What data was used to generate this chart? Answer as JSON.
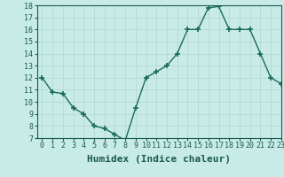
{
  "x": [
    0,
    1,
    2,
    3,
    4,
    5,
    6,
    7,
    8,
    9,
    10,
    11,
    12,
    13,
    14,
    15,
    16,
    17,
    18,
    19,
    20,
    21,
    22,
    23
  ],
  "y": [
    12,
    10.8,
    10.7,
    9.5,
    9.0,
    8.0,
    7.8,
    7.3,
    6.8,
    9.5,
    12.0,
    12.5,
    13.0,
    14.0,
    16.0,
    16.0,
    17.8,
    17.9,
    16.0,
    16.0,
    16.0,
    14.0,
    12.0,
    11.5
  ],
  "line_color": "#1a6b5a",
  "marker": "+",
  "bg_color": "#c8ebe8",
  "grid_color": "#b8dbd8",
  "xlabel": "Humidex (Indice chaleur)",
  "ylim": [
    7,
    18
  ],
  "xlim": [
    -0.5,
    23
  ],
  "yticks": [
    7,
    8,
    9,
    10,
    11,
    12,
    13,
    14,
    15,
    16,
    17,
    18
  ],
  "xticks": [
    0,
    1,
    2,
    3,
    4,
    5,
    6,
    7,
    8,
    9,
    10,
    11,
    12,
    13,
    14,
    15,
    16,
    17,
    18,
    19,
    20,
    21,
    22,
    23
  ],
  "tick_fontsize": 6,
  "xlabel_fontsize": 8
}
